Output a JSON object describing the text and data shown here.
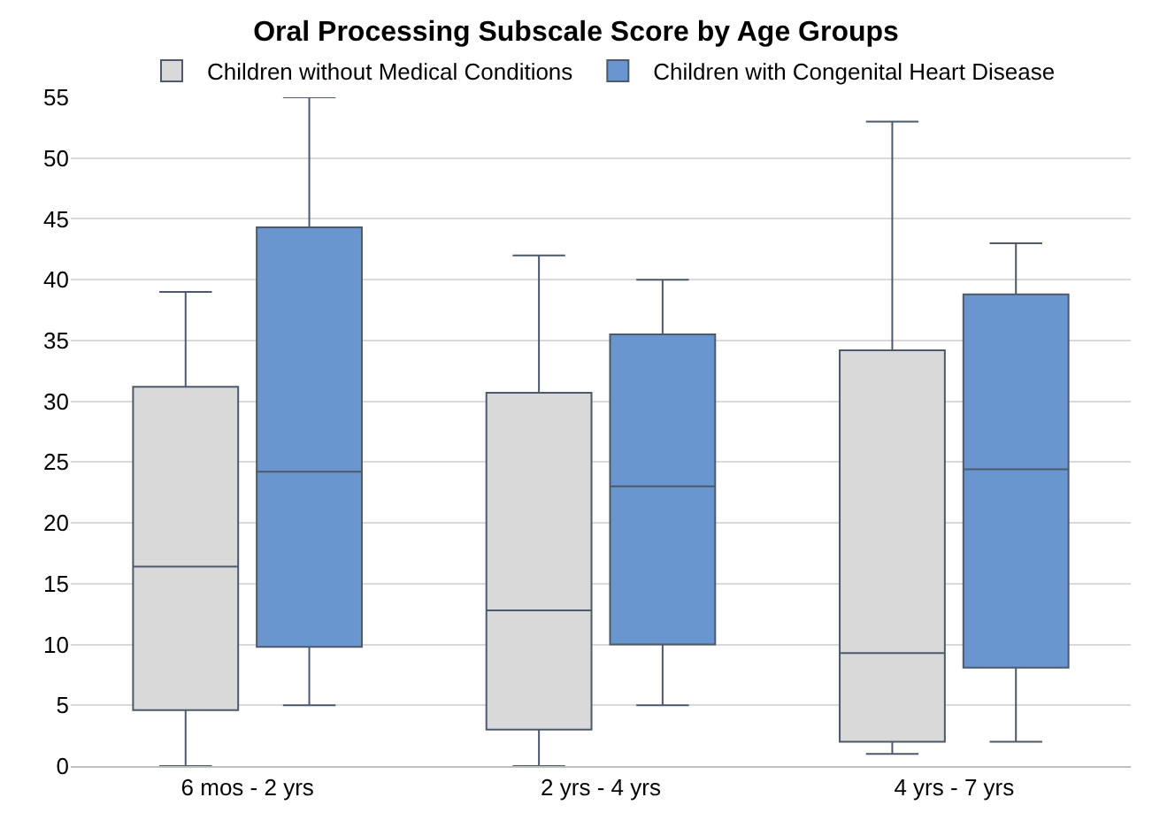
{
  "chart_data": {
    "type": "box",
    "title": "Oral Processing Subscale Score by Age Groups",
    "categories": [
      "6 mos - 2 yrs",
      "2 yrs - 4 yrs",
      "4 yrs - 7 yrs"
    ],
    "series": [
      {
        "name": "Children without Medical Conditions",
        "color": "#d9d9d9",
        "boxes": [
          {
            "low": 0,
            "q1": 4.6,
            "median": 16.4,
            "q3": 31.2,
            "high": 39
          },
          {
            "low": 0,
            "q1": 3,
            "median": 12.8,
            "q3": 30.7,
            "high": 42
          },
          {
            "low": 1,
            "q1": 2,
            "median": 9.3,
            "q3": 34.2,
            "high": 53
          }
        ]
      },
      {
        "name": "Children with Congenital Heart Disease",
        "color": "#6a96d0",
        "boxes": [
          {
            "low": 5,
            "q1": 9.8,
            "median": 24.2,
            "q3": 44.3,
            "high": 55
          },
          {
            "low": 5,
            "q1": 10,
            "median": 23,
            "q3": 35.5,
            "high": 40
          },
          {
            "low": 2,
            "q1": 8.1,
            "median": 24.4,
            "q3": 38.8,
            "high": 43
          }
        ]
      }
    ],
    "ylim": [
      0,
      55
    ],
    "yticks": [
      0,
      5,
      10,
      15,
      20,
      25,
      30,
      35,
      40,
      45,
      50,
      55
    ],
    "grid": "y",
    "legend": "top"
  }
}
